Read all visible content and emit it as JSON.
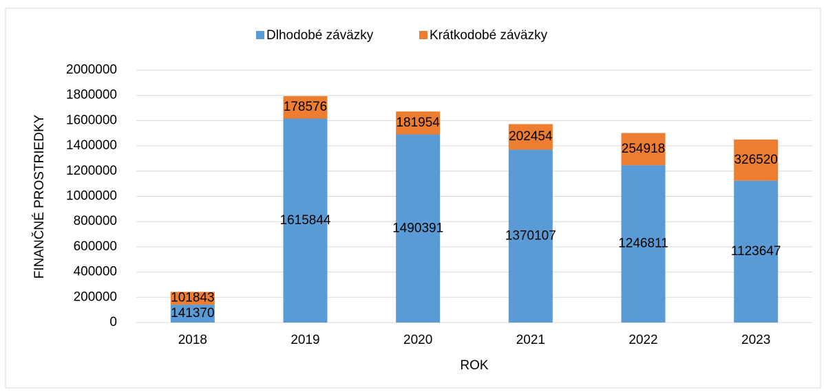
{
  "chart_data": {
    "type": "stacked_bar",
    "categories": [
      "2018",
      "2019",
      "2020",
      "2021",
      "2022",
      "2023"
    ],
    "series": [
      {
        "name": "Dlhodobé záväzky",
        "color": "#5b9bd5",
        "values": [
          141370,
          1615844,
          1490391,
          1370107,
          1246811,
          1123647
        ]
      },
      {
        "name": "Krátkodobé záväzky",
        "color": "#ed7d31",
        "values": [
          101843,
          178576,
          181954,
          202454,
          254918,
          326520
        ]
      }
    ],
    "x_label": "ROK",
    "y_label": "FINANČNÉ PROSTRIEDKY",
    "ylim": [
      0,
      2000000
    ],
    "yticks": [
      0,
      200000,
      400000,
      600000,
      800000,
      1000000,
      1200000,
      1400000,
      1600000,
      1800000,
      2000000
    ],
    "grid": true,
    "legend": "top"
  }
}
